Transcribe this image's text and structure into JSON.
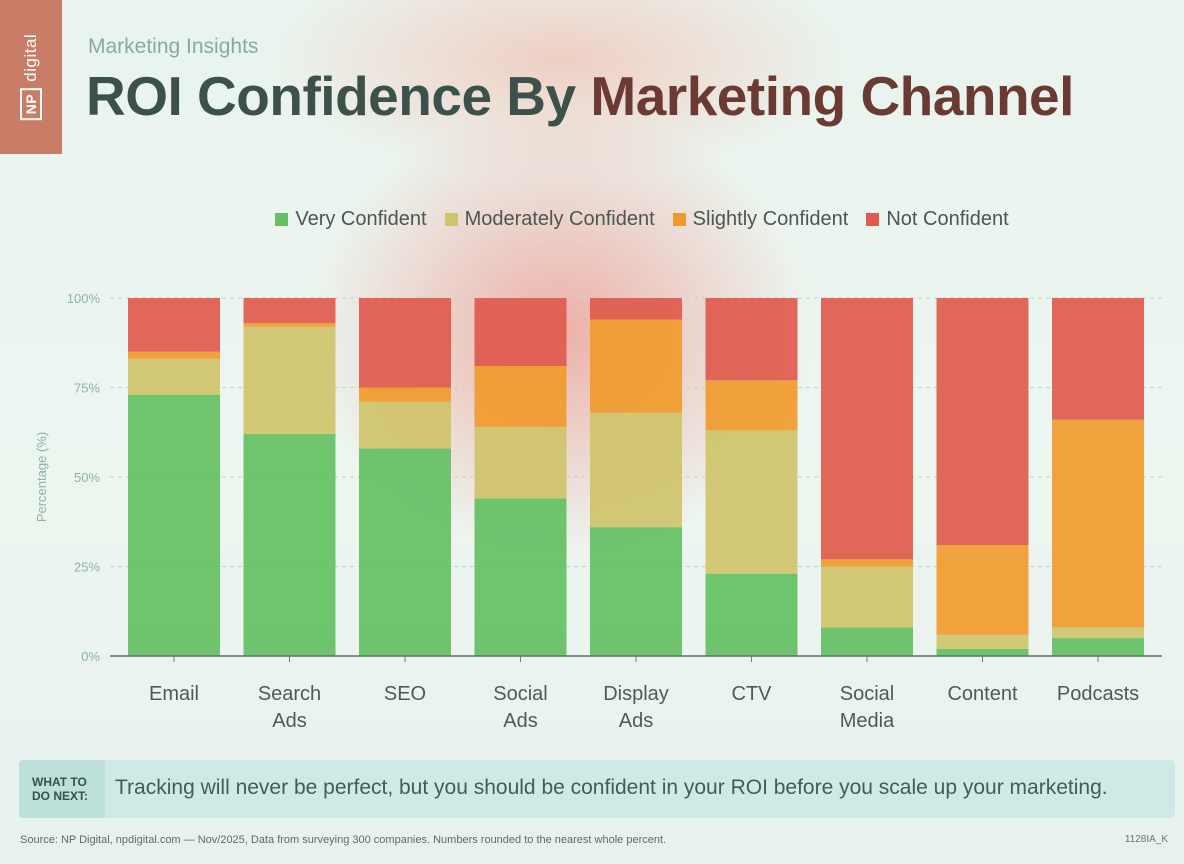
{
  "brand": {
    "logo_text": "digital",
    "logo_box": "NP"
  },
  "header": {
    "subtitle": "Marketing Insights",
    "title_part1": "ROI Confidence By ",
    "title_part2": "Marketing Channel"
  },
  "colors": {
    "very": "#63c063",
    "moderately": "#cfc36b",
    "slightly": "#f09a2d",
    "not": "#e05a4e"
  },
  "chart_data": {
    "type": "bar",
    "stacked": true,
    "title": "ROI Confidence By Marketing Channel",
    "xlabel": "",
    "ylabel": "Percentage (%)",
    "ylim": [
      0,
      100
    ],
    "yticks": [
      0,
      25,
      50,
      75,
      100
    ],
    "ytick_labels": [
      "0%",
      "25%",
      "50%",
      "75%",
      "100%"
    ],
    "categories": [
      [
        "Email"
      ],
      [
        "Search",
        "Ads"
      ],
      [
        "SEO"
      ],
      [
        "Social",
        "Ads"
      ],
      [
        "Display",
        "Ads"
      ],
      [
        "CTV"
      ],
      [
        "Social",
        "Media"
      ],
      [
        "Content"
      ],
      [
        "Podcasts"
      ]
    ],
    "legend_position": "top",
    "series": [
      {
        "name": "Very Confident",
        "color_key": "very",
        "values": [
          73,
          62,
          58,
          44,
          36,
          23,
          8,
          2,
          5
        ]
      },
      {
        "name": "Moderately Confident",
        "color_key": "moderately",
        "values": [
          10,
          30,
          13,
          20,
          32,
          40,
          17,
          4,
          3
        ]
      },
      {
        "name": "Slightly Confident",
        "color_key": "slightly",
        "values": [
          2,
          1,
          4,
          17,
          26,
          14,
          2,
          25,
          58
        ]
      },
      {
        "name": "Not Confident",
        "color_key": "not",
        "values": [
          15,
          7,
          25,
          19,
          6,
          23,
          73,
          69,
          34
        ]
      }
    ]
  },
  "callout": {
    "tag_line1": "WHAT TO",
    "tag_line2": "DO NEXT:",
    "text": "Tracking will never be perfect, but you should be confident in your ROI before you scale up your marketing."
  },
  "footer": {
    "source": "Source: NP Digital, npdigital.com — Nov/2025, Data from surveying 300 companies. Numbers rounded to the nearest whole percent.",
    "id": "1128IA_K"
  }
}
